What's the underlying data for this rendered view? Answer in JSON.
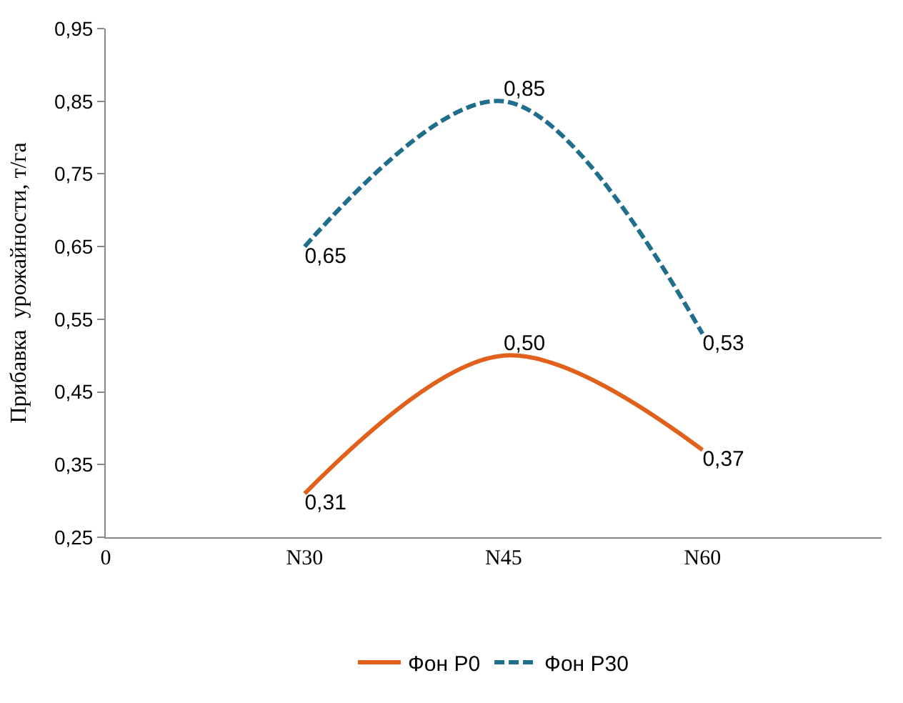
{
  "chart_data": {
    "type": "line",
    "ylabel": "Прибавка  урожайности, т/га",
    "categories": [
      "0",
      "N30",
      "N45",
      "N60"
    ],
    "series": [
      {
        "name": "Фон Р0",
        "color": "#e0601c",
        "line_style": "solid",
        "values": [
          null,
          0.31,
          0.5,
          0.37
        ],
        "value_labels": [
          null,
          "0,31",
          "0,50",
          "0,37"
        ]
      },
      {
        "name": "Фон Р30",
        "color": "#1f6e8c",
        "line_style": "dashed",
        "values": [
          null,
          0.65,
          0.85,
          0.53
        ],
        "value_labels": [
          null,
          "0,65",
          "0,85",
          "0,53"
        ]
      }
    ],
    "ylim": [
      0.25,
      0.95
    ],
    "yticks": [
      {
        "value": 0.25,
        "label": "0,25"
      },
      {
        "value": 0.35,
        "label": "0,35"
      },
      {
        "value": 0.45,
        "label": "0,45"
      },
      {
        "value": 0.55,
        "label": "0,55"
      },
      {
        "value": 0.65,
        "label": "0,65"
      },
      {
        "value": 0.75,
        "label": "0,75"
      },
      {
        "value": 0.85,
        "label": "0,85"
      },
      {
        "value": 0.95,
        "label": "0,95"
      }
    ],
    "legend": "bottom",
    "marker": "none"
  }
}
